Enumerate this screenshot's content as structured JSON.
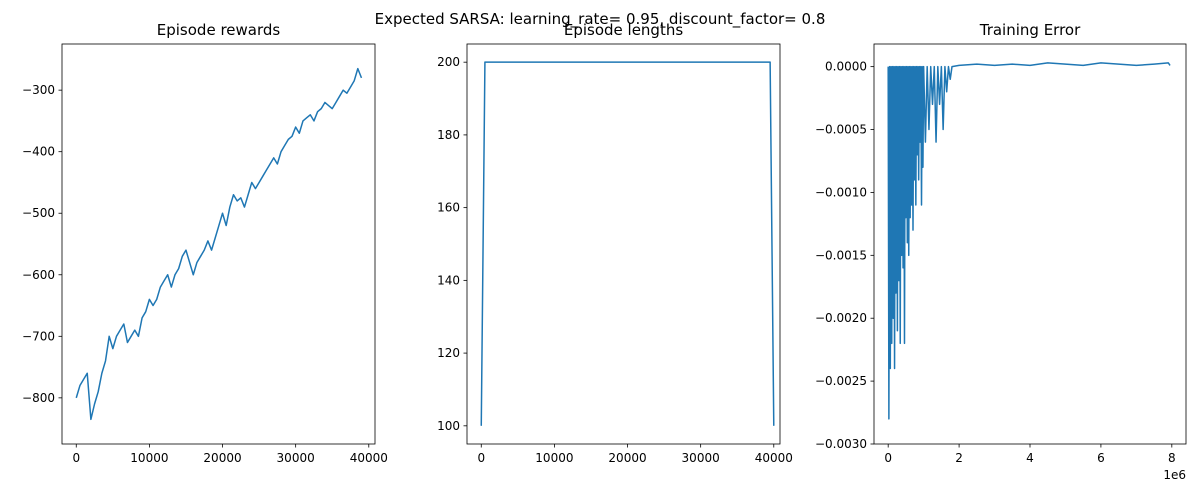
{
  "figure": {
    "suptitle": "Expected SARSA: learning_rate= 0.95, discount_factor= 0.8"
  },
  "colors": {
    "line": "#1f77b4",
    "axes": "#000000",
    "background": "#ffffff"
  },
  "chart_data": [
    {
      "type": "line",
      "title": "Episode rewards",
      "xlabel": "",
      "ylabel": "",
      "xlim": [
        -1950,
        40850
      ],
      "ylim": [
        -875,
        -225
      ],
      "xticks": [
        0,
        10000,
        20000,
        30000,
        40000
      ],
      "xtick_labels": [
        "0",
        "10000",
        "20000",
        "30000",
        "40000"
      ],
      "yticks": [
        -800,
        -700,
        -600,
        -500,
        -400,
        -300
      ],
      "ytick_labels": [
        "−800",
        "−700",
        "−600",
        "−500",
        "−400",
        "−300"
      ],
      "grid": false,
      "series": [
        {
          "x": [
            0,
            500,
            1000,
            1500,
            2000,
            2500,
            3000,
            3500,
            4000,
            4500,
            5000,
            5500,
            6000,
            6500,
            7000,
            7500,
            8000,
            8500,
            9000,
            9500,
            10000,
            10500,
            11000,
            11500,
            12000,
            12500,
            13000,
            13500,
            14000,
            14500,
            15000,
            15500,
            16000,
            16500,
            17000,
            17500,
            18000,
            18500,
            19000,
            19500,
            20000,
            20500,
            21000,
            21500,
            22000,
            22500,
            23000,
            23500,
            24000,
            24500,
            25000,
            25500,
            26000,
            26500,
            27000,
            27500,
            28000,
            28500,
            29000,
            29500,
            30000,
            30500,
            31000,
            31500,
            32000,
            32500,
            33000,
            33500,
            34000,
            34500,
            35000,
            35500,
            36000,
            36500,
            37000,
            37500,
            38000,
            38500,
            39000
          ],
          "y": [
            -800,
            -780,
            -770,
            -760,
            -835,
            -810,
            -790,
            -760,
            -740,
            -700,
            -720,
            -700,
            -690,
            -680,
            -710,
            -700,
            -690,
            -700,
            -670,
            -660,
            -640,
            -650,
            -640,
            -620,
            -610,
            -600,
            -620,
            -600,
            -590,
            -570,
            -560,
            -580,
            -600,
            -580,
            -570,
            -560,
            -545,
            -560,
            -540,
            -520,
            -500,
            -520,
            -490,
            -470,
            -480,
            -475,
            -490,
            -470,
            -450,
            -460,
            -450,
            -440,
            -430,
            -420,
            -410,
            -420,
            -400,
            -390,
            -380,
            -375,
            -360,
            -370,
            -350,
            -345,
            -340,
            -350,
            -335,
            -330,
            -320,
            -325,
            -330,
            -320,
            -310,
            -300,
            -305,
            -295,
            -285,
            -265,
            -280
          ]
        }
      ]
    },
    {
      "type": "line",
      "title": "Episode lengths",
      "xlabel": "",
      "ylabel": "",
      "xlim": [
        -1950,
        40850
      ],
      "ylim": [
        95,
        205
      ],
      "xticks": [
        0,
        10000,
        20000,
        30000,
        40000
      ],
      "xtick_labels": [
        "0",
        "10000",
        "20000",
        "30000",
        "40000"
      ],
      "yticks": [
        100,
        120,
        140,
        160,
        180,
        200
      ],
      "ytick_labels": [
        "100",
        "120",
        "140",
        "160",
        "180",
        "200"
      ],
      "grid": false,
      "series": [
        {
          "x": [
            0,
            500,
            39500,
            40000
          ],
          "y": [
            100,
            200,
            200,
            100
          ]
        }
      ]
    },
    {
      "type": "line",
      "title": "Training Error",
      "xlabel": "",
      "ylabel": "",
      "x_multiplier_label": "1e6",
      "xlim": [
        -0.4,
        8.4
      ],
      "ylim": [
        -0.003,
        0.00018
      ],
      "xticks": [
        0,
        2,
        4,
        6,
        8
      ],
      "xtick_labels": [
        "0",
        "2",
        "4",
        "6",
        "8"
      ],
      "yticks": [
        -0.003,
        -0.0025,
        -0.002,
        -0.0015,
        -0.001,
        -0.0005,
        0.0
      ],
      "ytick_labels": [
        "−0.0030",
        "−0.0025",
        "−0.0020",
        "−0.0015",
        "−0.0010",
        "−0.0005",
        "0.0000"
      ],
      "grid": false,
      "series": [
        {
          "x": [
            0,
            0.02,
            0.04,
            0.06,
            0.08,
            0.1,
            0.12,
            0.14,
            0.16,
            0.18,
            0.2,
            0.22,
            0.24,
            0.26,
            0.28,
            0.3,
            0.32,
            0.34,
            0.36,
            0.38,
            0.4,
            0.42,
            0.44,
            0.46,
            0.48,
            0.5,
            0.52,
            0.54,
            0.56,
            0.58,
            0.6,
            0.62,
            0.64,
            0.66,
            0.68,
            0.7,
            0.72,
            0.74,
            0.76,
            0.78,
            0.8,
            0.82,
            0.84,
            0.86,
            0.88,
            0.9,
            0.92,
            0.94,
            0.96,
            0.98,
            1.0,
            1.05,
            1.1,
            1.15,
            1.2,
            1.25,
            1.3,
            1.35,
            1.4,
            1.45,
            1.5,
            1.55,
            1.6,
            1.65,
            1.7,
            1.75,
            1.8,
            2.0,
            2.5,
            3.0,
            3.5,
            4.0,
            4.5,
            5.0,
            5.5,
            6.0,
            6.5,
            7.0,
            7.5,
            7.9,
            7.95
          ],
          "y": [
            0,
            -0.0028,
            0,
            -0.0024,
            0,
            -0.0022,
            0,
            -0.002,
            0,
            -0.0024,
            0,
            -0.0018,
            0,
            -0.0021,
            0,
            -0.0017,
            0,
            -0.0022,
            0,
            -0.0015,
            0,
            -0.0016,
            0,
            -0.0022,
            0,
            -0.0012,
            0,
            -0.0014,
            0,
            -0.0015,
            0,
            -0.0012,
            0,
            -0.0011,
            0,
            -0.0013,
            0,
            -0.0009,
            0,
            -0.0011,
            0,
            -0.0007,
            0,
            -0.0009,
            0,
            -0.0006,
            0,
            -0.0011,
            0,
            -0.0008,
            0,
            -0.0006,
            0,
            -0.0005,
            0,
            -0.0003,
            0,
            -0.0006,
            0,
            -0.0003,
            0,
            -0.0005,
            0,
            -0.0002,
            0,
            -0.0001,
            0,
            1e-05,
            2e-05,
            1e-05,
            2e-05,
            1e-05,
            3e-05,
            2e-05,
            1e-05,
            3e-05,
            2e-05,
            1e-05,
            2e-05,
            3e-05,
            1e-05
          ]
        }
      ]
    }
  ]
}
